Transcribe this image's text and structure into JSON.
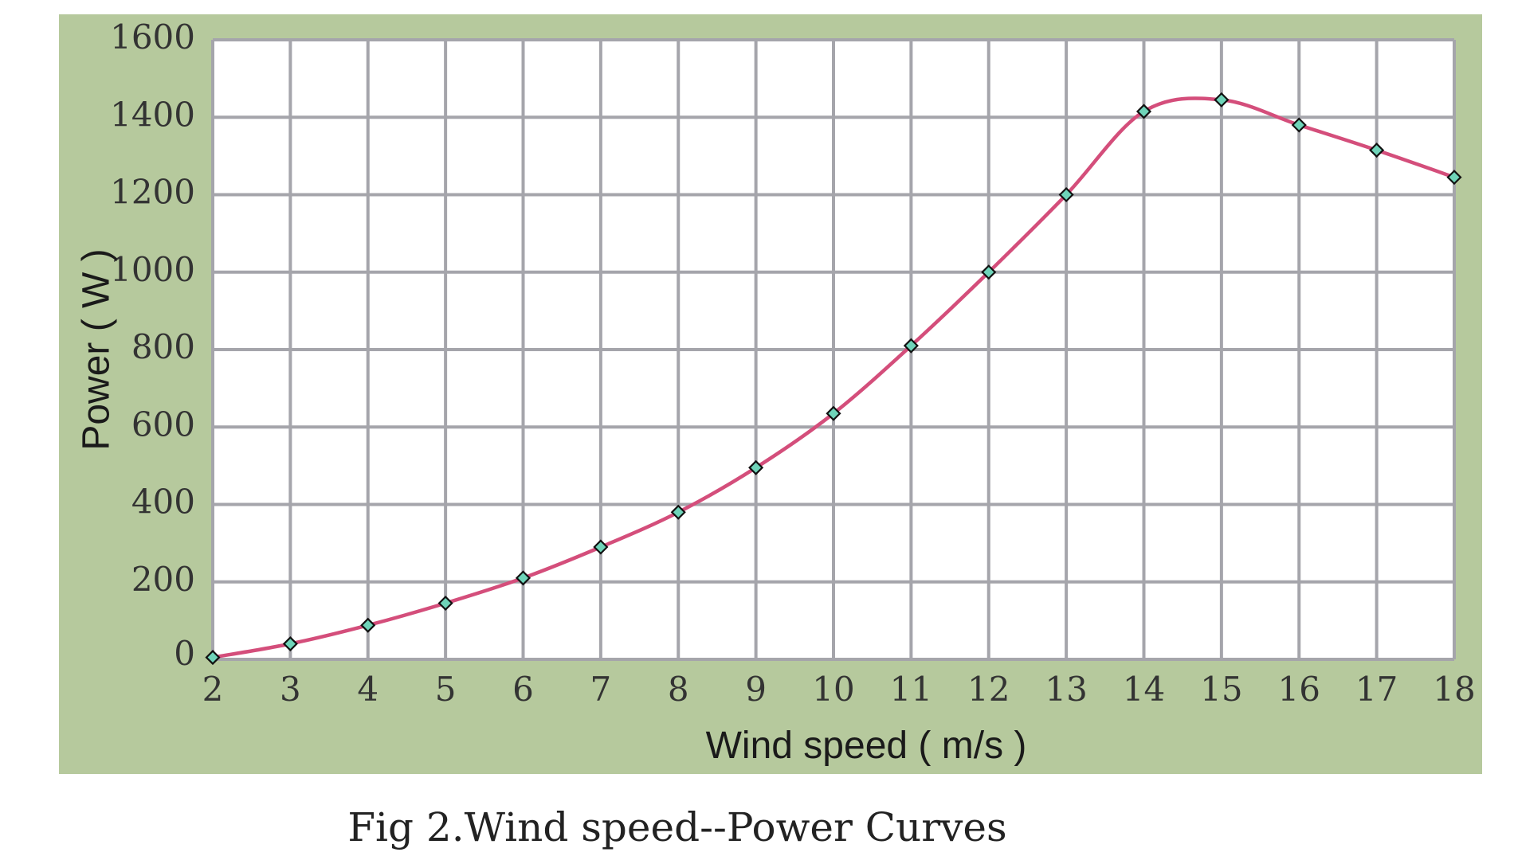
{
  "chart_data": {
    "type": "line",
    "title": "",
    "caption": "Fig 2.Wind speed--Power Curves",
    "xlabel": "Wind speed ( m/s )",
    "ylabel": "Power ( W )",
    "x": [
      2,
      3,
      4,
      5,
      6,
      7,
      8,
      9,
      10,
      11,
      12,
      13,
      14,
      15,
      16,
      17,
      18
    ],
    "series": [
      {
        "values": [
          5,
          40,
          88,
          145,
          210,
          290,
          380,
          495,
          635,
          810,
          1000,
          1200,
          1415,
          1445,
          1380,
          1315,
          1245
        ]
      }
    ],
    "xlim": [
      2,
      18
    ],
    "ylim": [
      0,
      1600
    ],
    "xticks": [
      "2",
      "3",
      "4",
      "5",
      "6",
      "7",
      "8",
      "9",
      "10",
      "11",
      "12",
      "13",
      "14",
      "15",
      "16",
      "17",
      "18"
    ],
    "yticks": [
      "0",
      "200",
      "400",
      "600",
      "800",
      "1000",
      "1200",
      "1400",
      "1600"
    ],
    "grid": true,
    "legend": "none",
    "colors": {
      "background": "#b6c99d",
      "plot_area": "#ffffff",
      "grid": "#a5a5ab",
      "line": "#d44e7b",
      "marker_fill": "#6fd4b9",
      "marker_stroke": "#111111"
    }
  }
}
